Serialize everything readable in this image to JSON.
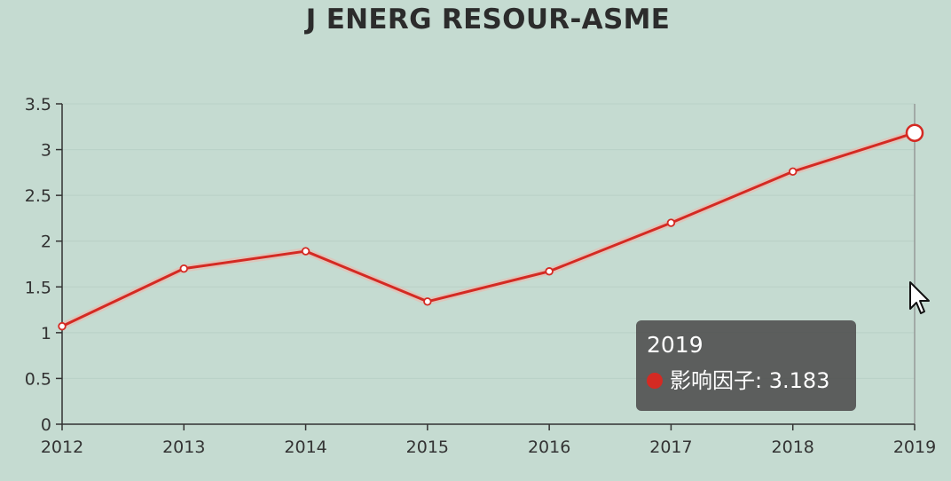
{
  "chart_data": {
    "type": "line",
    "title": "J ENERG RESOUR-ASME",
    "categories": [
      "2012",
      "2013",
      "2014",
      "2015",
      "2016",
      "2017",
      "2018",
      "2019"
    ],
    "series": [
      {
        "name": "影响因子",
        "values": [
          1.07,
          1.7,
          1.89,
          1.34,
          1.67,
          2.2,
          2.76,
          3.183
        ]
      }
    ],
    "y_ticks": [
      "0",
      "0.5",
      "1",
      "1.5",
      "2",
      "2.5",
      "3",
      "3.5"
    ],
    "ylim": [
      0,
      3.5
    ],
    "grid": true,
    "highlighted_category": "2019"
  },
  "tooltip": {
    "title": "2019",
    "series_name": "影响因子",
    "value": "3.183",
    "separator": ": "
  },
  "colors": {
    "line": "#d42a23",
    "background": "#c5dbd1",
    "axis": "#333333",
    "grid": "#b9d0c6",
    "tooltip_bg": "#505050"
  }
}
